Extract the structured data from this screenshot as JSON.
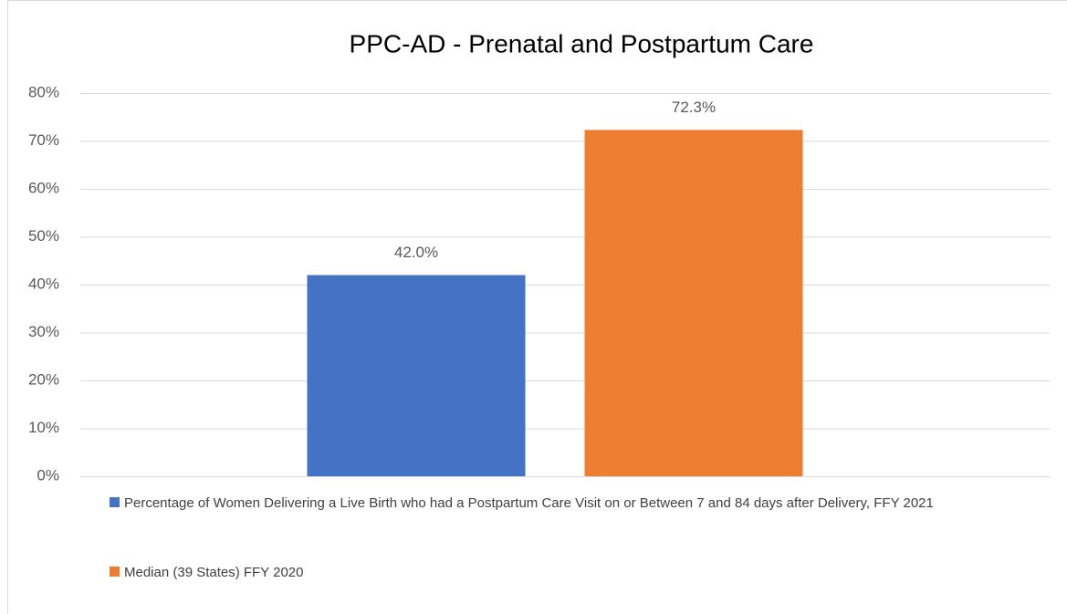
{
  "chart_data": {
    "type": "bar",
    "title": "PPC-AD - Prenatal and Postpartum Care",
    "categories": [
      null
    ],
    "series": [
      {
        "name": "Percentage of Women Delivering a Live Birth who had a Postpartum Care Visit on or Between 7 and 84 days after Delivery, FFY 2021",
        "color": "#4472c4",
        "values": [
          42.0
        ],
        "value_labels": [
          "42.0%"
        ]
      },
      {
        "name": "Median (39 States) FFY 2020",
        "color": "#ed7d31",
        "values": [
          72.3
        ],
        "value_labels": [
          "72.3%"
        ]
      }
    ],
    "ylim": [
      0,
      80
    ],
    "yticks": [
      {
        "value": 0,
        "label": "0%"
      },
      {
        "value": 10,
        "label": "10%"
      },
      {
        "value": 20,
        "label": "20%"
      },
      {
        "value": 30,
        "label": "30%"
      },
      {
        "value": 40,
        "label": "40%"
      },
      {
        "value": 50,
        "label": "50%"
      },
      {
        "value": 60,
        "label": "60%"
      },
      {
        "value": 70,
        "label": "70%"
      },
      {
        "value": 80,
        "label": "80%"
      }
    ],
    "grid": true,
    "legend": "bottom"
  }
}
